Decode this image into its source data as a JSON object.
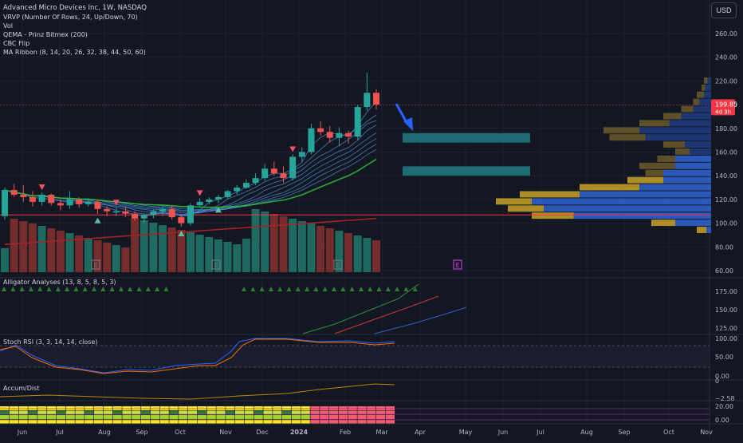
{
  "legend": {
    "symbol": "Advanced Micro Devices Inc, 1W, NASDAQ",
    "indicators": [
      "VRVP (Number Of Rows, 24, Up/Down, 70)",
      "Vol",
      "QEMA - Prinz Bitmex (200)",
      "CBC Flip",
      "MA Ribbon (8, 14, 20, 26, 32, 38, 44, 50, 60)"
    ]
  },
  "currency_button": "USD",
  "price_axis": {
    "ticks": [
      "260.00",
      "240.00",
      "220.00",
      "200.00",
      "180.00",
      "160.00",
      "140.00",
      "120.00",
      "100.00",
      "80.00",
      "60.00"
    ],
    "last_price": "199.85",
    "countdown": "4d 3h"
  },
  "time_axis": {
    "labels": [
      "Jun",
      "Jul",
      "Aug",
      "Sep",
      "Oct",
      "Nov",
      "Dec",
      "2024",
      "Feb",
      "Mar",
      "Apr",
      "May",
      "Jun",
      "Jul",
      "Aug",
      "Sep",
      "Oct",
      "Nov"
    ]
  },
  "earnings_marker": "E",
  "panes": {
    "alligator": {
      "title": "Alligator Analyses (13, 8, 5, 8, 5, 3)",
      "ticks": [
        "175.00",
        "150.00",
        "125.00"
      ]
    },
    "stoch_rsi": {
      "title": "Stoch RSI (3, 3, 14, 14, close)",
      "ticks": [
        "100.00",
        "50.00",
        "0.00"
      ]
    },
    "accum_dist": {
      "title": "Accum/Dist",
      "ticks": [
        "0",
        "−2.58"
      ]
    },
    "bottom": {
      "ticks": [
        "20.00",
        "0.00"
      ]
    }
  },
  "colors": {
    "up": "#26a69a",
    "down": "#ef5350",
    "background": "#131722",
    "target_zone": "#1e6b73",
    "ribbon": "#4a8bd6",
    "ma_green": "#2ec23a",
    "qema_red": "#a32424",
    "arrow": "#2962ff"
  },
  "chart_data": {
    "type": "candlestick",
    "title": "Advanced Micro Devices Inc, 1W, NASDAQ",
    "interval": "1W",
    "currency": "USD",
    "x_start": "2023-05-29",
    "candles": [
      [
        106,
        130,
        103,
        128
      ],
      [
        128,
        133,
        122,
        124
      ],
      [
        124,
        132,
        118,
        122
      ],
      [
        122,
        127,
        114,
        118
      ],
      [
        118,
        126,
        115,
        124
      ],
      [
        124,
        125,
        115,
        117
      ],
      [
        117,
        120,
        111,
        115
      ],
      [
        115,
        127,
        112,
        120
      ],
      [
        120,
        122,
        113,
        116
      ],
      [
        116,
        121,
        114,
        118
      ],
      [
        118,
        120,
        108,
        112
      ],
      [
        112,
        114,
        106,
        110
      ],
      [
        110,
        113,
        106,
        110
      ],
      [
        110,
        114,
        105,
        108
      ],
      [
        108,
        110,
        102,
        104
      ],
      [
        104,
        108,
        100,
        107
      ],
      [
        107,
        112,
        104,
        110
      ],
      [
        110,
        114,
        106,
        112
      ],
      [
        112,
        115,
        103,
        105
      ],
      [
        105,
        108,
        97,
        100
      ],
      [
        100,
        117,
        98,
        115
      ],
      [
        115,
        121,
        114,
        118
      ],
      [
        118,
        122,
        116,
        120
      ],
      [
        120,
        124,
        117,
        122
      ],
      [
        122,
        128,
        120,
        127
      ],
      [
        127,
        132,
        124,
        130
      ],
      [
        130,
        137,
        129,
        134
      ],
      [
        134,
        142,
        132,
        138
      ],
      [
        138,
        150,
        136,
        146
      ],
      [
        146,
        152,
        140,
        142
      ],
      [
        142,
        148,
        134,
        138
      ],
      [
        138,
        158,
        136,
        156
      ],
      [
        156,
        164,
        152,
        160
      ],
      [
        160,
        184,
        158,
        180
      ],
      [
        180,
        186,
        174,
        177
      ],
      [
        177,
        182,
        168,
        172
      ],
      [
        172,
        181,
        165,
        176
      ],
      [
        176,
        178,
        167,
        173
      ],
      [
        173,
        200,
        170,
        198
      ],
      [
        198,
        227,
        195,
        210
      ],
      [
        210,
        213,
        196,
        200
      ]
    ],
    "last_price": 199.85,
    "ylim": [
      60,
      270
    ],
    "target_zones": [
      [
        168,
        176
      ],
      [
        140,
        148
      ]
    ]
  }
}
